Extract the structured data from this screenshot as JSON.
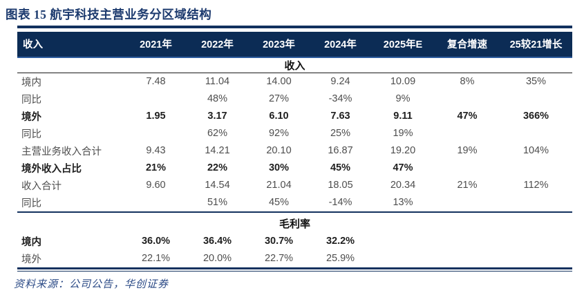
{
  "figure": {
    "title": "图表 15  航宇科技主营业务分区域结构"
  },
  "table": {
    "columns": [
      "收入",
      "2021年",
      "2022年",
      "2023年",
      "2024年",
      "2025年E",
      "复合增速",
      "25较21增长"
    ],
    "sections": [
      {
        "name": "收入",
        "rows": [
          {
            "label": "境内",
            "bold": false,
            "values": [
              "7.48",
              "11.04",
              "14.00",
              "9.24",
              "10.09",
              "8%",
              "35%"
            ]
          },
          {
            "label": "同比",
            "bold": false,
            "values": [
              "",
              "48%",
              "27%",
              "-34%",
              "9%",
              "",
              ""
            ]
          },
          {
            "label": "境外",
            "bold": true,
            "values": [
              "1.95",
              "3.17",
              "6.10",
              "7.63",
              "9.11",
              "47%",
              "366%"
            ]
          },
          {
            "label": "同比",
            "bold": false,
            "values": [
              "",
              "62%",
              "92%",
              "25%",
              "19%",
              "",
              ""
            ]
          },
          {
            "label": "主营业务收入合计",
            "bold": false,
            "values": [
              "9.43",
              "14.21",
              "20.10",
              "16.87",
              "19.20",
              "19%",
              "104%"
            ]
          },
          {
            "label": "境外收入占比",
            "bold": true,
            "values": [
              "21%",
              "22%",
              "30%",
              "45%",
              "47%",
              "",
              ""
            ]
          },
          {
            "label": "收入合计",
            "bold": false,
            "values": [
              "9.60",
              "14.54",
              "21.04",
              "18.05",
              "20.34",
              "21%",
              "112%"
            ]
          },
          {
            "label": "同比",
            "bold": false,
            "values": [
              "",
              "51%",
              "45%",
              "-14%",
              "13%",
              "",
              ""
            ]
          }
        ]
      },
      {
        "name": "毛利率",
        "rows": [
          {
            "label": "境内",
            "bold": true,
            "values": [
              "36.0%",
              "36.4%",
              "30.7%",
              "32.2%",
              "",
              "",
              ""
            ]
          },
          {
            "label": "境外",
            "bold": false,
            "values": [
              "22.1%",
              "20.0%",
              "22.7%",
              "25.9%",
              "",
              "",
              ""
            ]
          }
        ]
      }
    ]
  },
  "footer": {
    "source": "资料来源：公司公告，华创证券"
  },
  "colors": {
    "navy": "#12315e",
    "header_bg": "#0c2c55",
    "header_underline": "#2e5d9e",
    "title": "#1c3a6e",
    "text": "#4d4d4d",
    "text_bold": "#1f1f1f",
    "rule_dark": "#1a1a1a",
    "footer": "#2b4a86"
  }
}
